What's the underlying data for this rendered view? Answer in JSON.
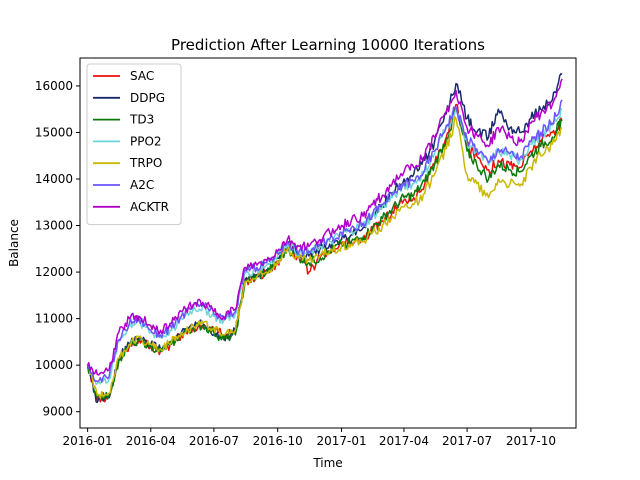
{
  "chart_data": {
    "type": "line",
    "title": "Prediction After Learning 10000 Iterations",
    "xlabel": "Time",
    "ylabel": "Balance",
    "x_range": [
      "2015-12-21",
      "2017-12-05"
    ],
    "ylim": [
      8650,
      16600
    ],
    "x_ticks": [
      {
        "date": "2016-01-01",
        "label": "2016-01"
      },
      {
        "date": "2016-04-01",
        "label": "2016-04"
      },
      {
        "date": "2016-07-01",
        "label": "2016-07"
      },
      {
        "date": "2016-10-01",
        "label": "2016-10"
      },
      {
        "date": "2017-01-01",
        "label": "2017-01"
      },
      {
        "date": "2017-04-01",
        "label": "2017-04"
      },
      {
        "date": "2017-07-01",
        "label": "2017-07"
      },
      {
        "date": "2017-10-01",
        "label": "2017-10"
      }
    ],
    "y_ticks": [
      9000,
      10000,
      11000,
      12000,
      13000,
      14000,
      15000,
      16000
    ],
    "grid": false,
    "legend_position": "upper-left",
    "x": [
      "2016-01-01",
      "2016-01-15",
      "2016-02-01",
      "2016-02-15",
      "2016-03-01",
      "2016-03-15",
      "2016-04-01",
      "2016-04-15",
      "2016-05-01",
      "2016-05-15",
      "2016-06-01",
      "2016-06-15",
      "2016-07-01",
      "2016-07-15",
      "2016-08-01",
      "2016-08-15",
      "2016-09-01",
      "2016-09-15",
      "2016-10-01",
      "2016-10-15",
      "2016-11-01",
      "2016-11-15",
      "2016-12-01",
      "2016-12-15",
      "2017-01-01",
      "2017-01-15",
      "2017-02-01",
      "2017-02-15",
      "2017-03-01",
      "2017-03-15",
      "2017-04-01",
      "2017-04-15",
      "2017-05-01",
      "2017-05-15",
      "2017-06-01",
      "2017-06-15",
      "2017-07-01",
      "2017-07-15",
      "2017-08-01",
      "2017-08-15",
      "2017-09-01",
      "2017-09-15",
      "2017-10-01",
      "2017-10-15",
      "2017-11-01",
      "2017-11-15"
    ],
    "series": [
      {
        "name": "SAC",
        "color": "#e8110f",
        "values": [
          10000,
          9250,
          9300,
          10100,
          10400,
          10550,
          10400,
          10300,
          10450,
          10650,
          10800,
          10850,
          10800,
          10650,
          10700,
          11800,
          11900,
          12000,
          12200,
          12550,
          12300,
          12000,
          12300,
          12400,
          12600,
          12650,
          12700,
          12900,
          13100,
          13300,
          13550,
          13600,
          13900,
          14300,
          14900,
          15600,
          14700,
          14500,
          14200,
          14400,
          14300,
          14250,
          14600,
          14800,
          15000,
          15250
        ]
      },
      {
        "name": "DDPG",
        "color": "#1a2a6c",
        "values": [
          10000,
          9200,
          9300,
          10150,
          10450,
          10600,
          10450,
          10350,
          10500,
          10700,
          10850,
          10900,
          10650,
          10600,
          10750,
          11850,
          11950,
          12050,
          12300,
          12600,
          12400,
          12350,
          12500,
          12600,
          12700,
          12800,
          12950,
          13200,
          13450,
          13700,
          14000,
          14100,
          14400,
          14800,
          15400,
          16050,
          15300,
          15000,
          14900,
          15500,
          15100,
          15000,
          15300,
          15500,
          15700,
          16250
        ]
      },
      {
        "name": "TD3",
        "color": "#0a7a0a",
        "values": [
          10000,
          9300,
          9350,
          10100,
          10400,
          10550,
          10400,
          10300,
          10450,
          10650,
          10800,
          10850,
          10700,
          10550,
          10650,
          11800,
          11900,
          12000,
          12200,
          12500,
          12300,
          12200,
          12300,
          12450,
          12600,
          12650,
          12750,
          12950,
          13150,
          13350,
          13600,
          13650,
          13950,
          14300,
          14850,
          15500,
          14600,
          14300,
          14000,
          14300,
          14200,
          14150,
          14500,
          14700,
          14900,
          15250
        ]
      },
      {
        "name": "PPO2",
        "color": "#6fd6d6",
        "values": [
          10000,
          9600,
          9700,
          10500,
          10850,
          10950,
          10700,
          10600,
          10750,
          11000,
          11200,
          11250,
          11050,
          10950,
          11100,
          12000,
          12050,
          12150,
          12350,
          12600,
          12400,
          12400,
          12550,
          12650,
          12800,
          12900,
          13000,
          13200,
          13400,
          13600,
          13850,
          13900,
          14150,
          14550,
          15100,
          15500,
          14800,
          14600,
          14300,
          14600,
          14500,
          14400,
          14750,
          14950,
          15150,
          15500
        ]
      },
      {
        "name": "TRPO",
        "color": "#c9b800",
        "values": [
          10000,
          9350,
          9400,
          10150,
          10450,
          10600,
          10450,
          10350,
          10500,
          10700,
          10850,
          10900,
          10800,
          10650,
          10750,
          11800,
          11900,
          12000,
          12250,
          12500,
          12300,
          12250,
          12350,
          12450,
          12550,
          12600,
          12650,
          12850,
          13000,
          13200,
          13400,
          13450,
          13700,
          14100,
          14650,
          15300,
          14100,
          13900,
          13600,
          14000,
          13900,
          13850,
          14250,
          14500,
          14750,
          15100
        ]
      },
      {
        "name": "A2C",
        "color": "#6b54ff",
        "values": [
          10000,
          9650,
          9750,
          10550,
          10900,
          11000,
          10750,
          10650,
          10800,
          11050,
          11250,
          11300,
          11100,
          11000,
          11150,
          12050,
          12100,
          12200,
          12400,
          12650,
          12450,
          12450,
          12600,
          12700,
          12850,
          12950,
          13050,
          13250,
          13450,
          13650,
          13900,
          13950,
          14200,
          14600,
          15150,
          15550,
          14850,
          14650,
          14350,
          14650,
          14550,
          14450,
          14800,
          15000,
          15200,
          15700
        ]
      },
      {
        "name": "ACKTR",
        "color": "#b000c8",
        "values": [
          10000,
          9800,
          9900,
          10700,
          11000,
          11050,
          10850,
          10750,
          10900,
          11150,
          11300,
          11350,
          11150,
          11050,
          11200,
          12100,
          12150,
          12250,
          12450,
          12700,
          12550,
          12550,
          12700,
          12850,
          13000,
          13100,
          13200,
          13450,
          13650,
          13900,
          14150,
          14250,
          14500,
          14900,
          15450,
          15900,
          15100,
          14950,
          14700,
          15100,
          14900,
          14800,
          15200,
          15400,
          15600,
          16150
        ]
      }
    ]
  }
}
